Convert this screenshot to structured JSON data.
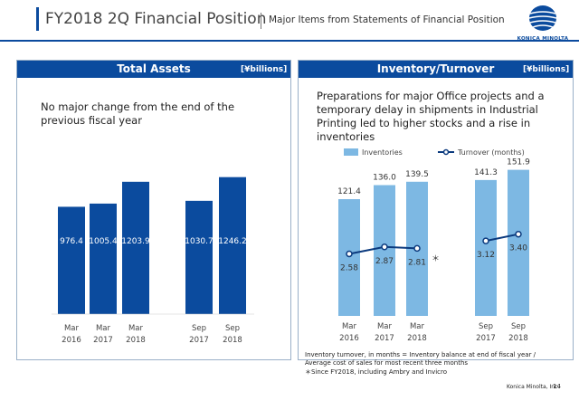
{
  "header": {
    "title": "FY2018 2Q Financial Position",
    "subtitle": "Major Items from Statements of Financial Position",
    "logo_text": "KONICA MINOLTA",
    "brand_color": "#0b4b9e"
  },
  "left_panel": {
    "title": "Total Assets",
    "unit": "[¥billions]",
    "text": "No major change from the end of the previous fiscal year"
  },
  "right_panel": {
    "title": "Inventory/Turnover",
    "unit": "[¥billions]",
    "text": "Preparations for major Office projects and a temporary delay in shipments in Industrial Printing led to higher stocks and a rise in inventories",
    "notes": [
      "Inventory turnover, in months = Inventory balance at end of fiscal year /",
      "Average cost of sales for most recent three months",
      "＊Since FY2018, including Ambry and Invicro"
    ]
  },
  "footer": {
    "company": "Konica Minolta, Inc.",
    "page": "14"
  },
  "chart_data": [
    {
      "type": "bar",
      "title": "Total Assets",
      "categories": [
        [
          "Mar",
          "2016"
        ],
        [
          "Mar",
          "2017"
        ],
        [
          "Mar",
          "2018"
        ],
        [
          "Sep",
          "2017"
        ],
        [
          "Sep",
          "2018"
        ]
      ],
      "values": [
        976.4,
        1005.4,
        1203.9,
        1030.7,
        1246.2
      ],
      "value_labels": [
        "976.4",
        "1005.4",
        "1203.9",
        "1030.7",
        "1246.2"
      ],
      "ylim": [
        0,
        1400
      ],
      "bar_color": "#0b4b9e",
      "label_color": "#ffffff"
    },
    {
      "type": "bar",
      "title": "Inventory/Turnover",
      "categories": [
        [
          "Mar",
          "2016"
        ],
        [
          "Mar",
          "2017"
        ],
        [
          "Mar",
          "2018"
        ],
        [
          "Sep",
          "2017"
        ],
        [
          "Sep",
          "2018"
        ]
      ],
      "legend": [
        "Inventories",
        "Turnover (months)"
      ],
      "series": [
        {
          "name": "Inventories",
          "type": "bar",
          "values": [
            121.4,
            136.0,
            139.5,
            141.3,
            151.9
          ],
          "labels": [
            "121.4",
            "136.0",
            "139.5",
            "141.3",
            "151.9"
          ],
          "color": "#7db8e3"
        },
        {
          "name": "Turnover (months)",
          "type": "line",
          "values": [
            2.58,
            2.87,
            2.81,
            3.12,
            3.4
          ],
          "labels": [
            "2.58",
            "2.87",
            "2.81",
            "3.12",
            "3.40"
          ],
          "color": "#0b3a7e",
          "segments": [
            [
              0,
              1,
              2
            ],
            [
              3,
              4
            ]
          ]
        }
      ],
      "annotation": "＊",
      "ylim": [
        0,
        160
      ],
      "turnover_range": [
        0,
        6.4
      ]
    }
  ]
}
